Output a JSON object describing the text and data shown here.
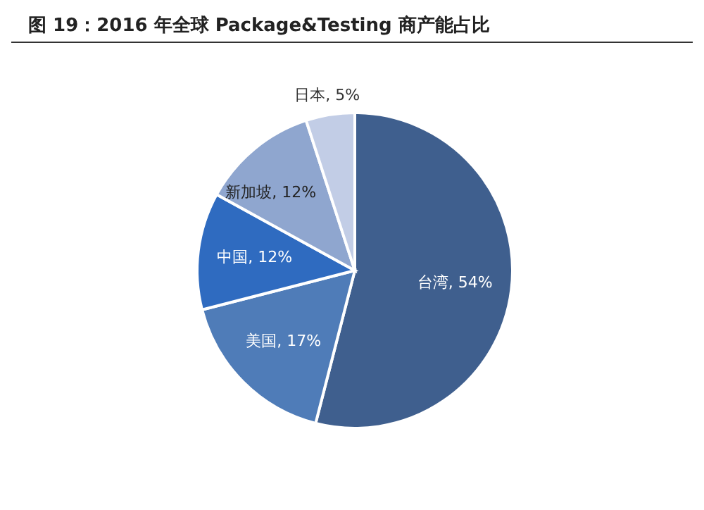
{
  "chart_data": {
    "type": "pie",
    "title": "图 19：2016 年全球 Package&Testing 商产能占比",
    "categories": [
      "台湾",
      "美国",
      "中国",
      "新加坡",
      "日本"
    ],
    "values": [
      54,
      17,
      12,
      12,
      5
    ],
    "value_labels": [
      "54%",
      "17%",
      "12%",
      "12%",
      "5%"
    ],
    "colors": [
      "#3f5f8e",
      "#4f7cb8",
      "#2f6bc0",
      "#8fa6cf",
      "#c2cde6"
    ],
    "legend": false
  }
}
